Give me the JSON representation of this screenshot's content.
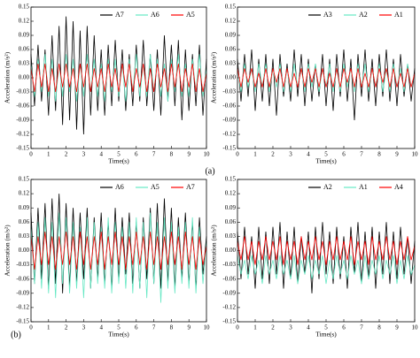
{
  "chart_data": [
    {
      "type": "line",
      "x_label": "Time(s)",
      "y_label": "Acceleration (m/s²)",
      "xlim": [
        0,
        10
      ],
      "ylim": [
        -0.15,
        0.15
      ],
      "xticks": [
        0,
        1,
        2,
        3,
        4,
        5,
        6,
        7,
        8,
        9,
        10
      ],
      "yticks": [
        0.15,
        0.12,
        0.09,
        0.06,
        0.03,
        {
          "value": 0,
          "label": "0.00"
        },
        -0.03,
        -0.06,
        -0.09,
        -0.12,
        -0.15
      ],
      "legend": "upper right",
      "x": [
        0,
        0.2,
        0.4,
        0.6,
        0.8,
        1,
        1.2,
        1.4,
        1.6,
        1.8,
        2,
        2.2,
        2.4,
        2.6,
        2.8,
        3,
        3.2,
        3.4,
        3.6,
        3.8,
        4,
        4.2,
        4.4,
        4.6,
        4.8,
        5,
        5.2,
        5.4,
        5.6,
        5.8,
        6,
        6.2,
        6.4,
        6.6,
        6.8,
        7,
        7.2,
        7.4,
        7.6,
        7.8,
        8,
        8.2,
        8.4,
        8.6,
        8.8,
        9,
        9.2,
        9.4,
        9.6,
        9.8,
        10
      ],
      "series": [
        {
          "name": "A7",
          "color": "#000000",
          "values": [
            0.05,
            -0.06,
            0.07,
            -0.05,
            0.06,
            -0.08,
            0.09,
            -0.07,
            0.11,
            -0.1,
            0.13,
            -0.09,
            0.12,
            -0.11,
            0.1,
            -0.12,
            0.11,
            -0.08,
            0.09,
            -0.07,
            0.06,
            -0.08,
            0.07,
            -0.06,
            0.08,
            -0.05,
            0.06,
            -0.07,
            0.05,
            -0.06,
            0.07,
            -0.05,
            0.08,
            -0.06,
            0.05,
            -0.07,
            0.06,
            -0.08,
            0.09,
            -0.05,
            0.07,
            -0.06,
            0.08,
            -0.09,
            0.06,
            -0.07,
            0.05,
            -0.06,
            0.07,
            -0.08,
            0.04
          ]
        },
        {
          "name": "A6",
          "color": "#66e8c4",
          "values": [
            0.03,
            -0.04,
            0.04,
            -0.03,
            0.05,
            -0.04,
            0.04,
            -0.05,
            0.03,
            -0.04,
            0.05,
            -0.03,
            0.04,
            -0.05,
            0.03,
            -0.04,
            0.05,
            -0.03,
            0.04,
            -0.04,
            0.03,
            -0.05,
            0.04,
            -0.03,
            0.04,
            -0.04,
            0.03,
            -0.05,
            0.04,
            -0.03,
            0.05,
            -0.04,
            0.03,
            -0.04,
            0.05,
            -0.03,
            0.04,
            -0.04,
            0.03,
            -0.05,
            0.04,
            -0.03,
            0.05,
            -0.04,
            0.03,
            -0.04,
            0.04,
            -0.03,
            0.05,
            -0.04,
            0.02
          ]
        },
        {
          "name": "A5",
          "color": "#ff0000",
          "values": [
            0.02,
            -0.03,
            0.03,
            -0.02,
            0.03,
            -0.03,
            0.02,
            -0.03,
            0.03,
            -0.02,
            0.03,
            -0.02,
            0.02,
            -0.03,
            0.03,
            -0.02,
            0.03,
            -0.03,
            0.02,
            -0.02,
            0.02,
            -0.03,
            0.03,
            -0.02,
            0.02,
            -0.03,
            0.03,
            -0.02,
            0.03,
            -0.03,
            0.02,
            -0.02,
            0.03,
            -0.03,
            0.02,
            -0.03,
            0.03,
            -0.02,
            0.02,
            -0.03,
            0.03,
            -0.02,
            0.03,
            -0.03,
            0.02,
            -0.02,
            0.03,
            -0.03,
            0.02,
            -0.03,
            0.01
          ]
        }
      ]
    },
    {
      "type": "line",
      "x_label": "Time(s)",
      "y_label": "Acceleration (m/s²)",
      "xlim": [
        0,
        10
      ],
      "ylim": [
        -0.15,
        0.15
      ],
      "xticks": [
        0,
        1,
        2,
        3,
        4,
        5,
        6,
        7,
        8,
        9,
        10
      ],
      "yticks": [
        0.15,
        0.12,
        0.09,
        0.06,
        0.03,
        {
          "value": 0,
          "label": "0.00"
        },
        -0.03,
        -0.06,
        -0.09,
        -0.12,
        -0.15
      ],
      "legend": "upper right",
      "x": [
        0,
        0.2,
        0.4,
        0.6,
        0.8,
        1,
        1.2,
        1.4,
        1.6,
        1.8,
        2,
        2.2,
        2.4,
        2.6,
        2.8,
        3,
        3.2,
        3.4,
        3.6,
        3.8,
        4,
        4.2,
        4.4,
        4.6,
        4.8,
        5,
        5.2,
        5.4,
        5.6,
        5.8,
        6,
        6.2,
        6.4,
        6.6,
        6.8,
        7,
        7.2,
        7.4,
        7.6,
        7.8,
        8,
        8.2,
        8.4,
        8.6,
        8.8,
        9,
        9.2,
        9.4,
        9.6,
        9.8,
        10
      ],
      "series": [
        {
          "name": "A3",
          "color": "#000000",
          "values": [
            0.04,
            -0.05,
            0.05,
            -0.04,
            0.06,
            -0.07,
            0.04,
            -0.05,
            0.05,
            -0.06,
            0.04,
            -0.08,
            0.05,
            -0.04,
            0.03,
            -0.05,
            0.06,
            -0.04,
            0.05,
            -0.06,
            0.04,
            -0.05,
            0.03,
            -0.04,
            0.05,
            -0.06,
            0.04,
            -0.07,
            0.05,
            -0.04,
            0.06,
            -0.05,
            0.04,
            -0.09,
            0.05,
            -0.04,
            0.06,
            -0.05,
            0.04,
            -0.06,
            0.05,
            -0.04,
            0.06,
            -0.05,
            0.04,
            -0.06,
            0.05,
            -0.04,
            0.03,
            -0.05,
            0.02
          ]
        },
        {
          "name": "A2",
          "color": "#66e8c4",
          "values": [
            0.02,
            -0.03,
            0.03,
            -0.02,
            0.02,
            -0.03,
            0.03,
            -0.02,
            0.03,
            -0.03,
            0.02,
            -0.02,
            0.03,
            -0.03,
            0.02,
            -0.03,
            0.03,
            -0.02,
            0.02,
            -0.03,
            0.03,
            -0.02,
            0.03,
            -0.03,
            0.02,
            -0.02,
            0.03,
            -0.03,
            0.02,
            -0.03,
            0.03,
            -0.02,
            0.02,
            -0.03,
            0.03,
            -0.02,
            0.03,
            -0.03,
            0.02,
            -0.02,
            0.03,
            -0.03,
            0.02,
            -0.03,
            0.03,
            -0.02,
            0.02,
            -0.03,
            0.03,
            -0.02,
            0.01
          ]
        },
        {
          "name": "A1",
          "color": "#ff0000",
          "values": [
            0.02,
            -0.02,
            0.02,
            -0.01,
            0.02,
            -0.02,
            0.01,
            -0.02,
            0.02,
            -0.02,
            0.02,
            -0.01,
            0.02,
            -0.02,
            0.02,
            -0.02,
            0.01,
            -0.02,
            0.02,
            -0.02,
            0.02,
            -0.01,
            0.02,
            -0.02,
            0.02,
            -0.02,
            0.01,
            -0.02,
            0.02,
            -0.02,
            0.02,
            -0.01,
            0.02,
            -0.02,
            0.02,
            -0.02,
            0.01,
            -0.02,
            0.02,
            -0.02,
            0.02,
            -0.01,
            0.02,
            -0.02,
            0.02,
            -0.02,
            0.01,
            -0.02,
            0.02,
            -0.02,
            0.01
          ]
        }
      ]
    },
    {
      "type": "line",
      "x_label": "Time(s)",
      "y_label": "Acceleration (m/s²)",
      "xlim": [
        0,
        10
      ],
      "ylim": [
        -0.15,
        0.15
      ],
      "xticks": [
        0,
        1,
        2,
        3,
        4,
        5,
        6,
        7,
        8,
        9,
        10
      ],
      "yticks": [
        0.15,
        0.12,
        0.09,
        0.06,
        0.03,
        {
          "value": 0,
          "label": "0.00"
        },
        -0.03,
        -0.06,
        -0.09,
        -0.12,
        -0.15
      ],
      "legend": "upper right",
      "x": [
        0,
        0.2,
        0.4,
        0.6,
        0.8,
        1,
        1.2,
        1.4,
        1.6,
        1.8,
        2,
        2.2,
        2.4,
        2.6,
        2.8,
        3,
        3.2,
        3.4,
        3.6,
        3.8,
        4,
        4.2,
        4.4,
        4.6,
        4.8,
        5,
        5.2,
        5.4,
        5.6,
        5.8,
        6,
        6.2,
        6.4,
        6.6,
        6.8,
        7,
        7.2,
        7.4,
        7.6,
        7.8,
        8,
        8.2,
        8.4,
        8.6,
        8.8,
        9,
        9.2,
        9.4,
        9.6,
        9.8,
        10
      ],
      "series": [
        {
          "name": "A6",
          "color": "#000000",
          "values": [
            0.08,
            -0.07,
            0.09,
            -0.06,
            0.1,
            -0.08,
            0.11,
            -0.07,
            0.12,
            -0.09,
            0.1,
            -0.08,
            0.09,
            -0.07,
            0.08,
            -0.06,
            0.09,
            -0.08,
            0.07,
            -0.06,
            0.08,
            -0.07,
            0.06,
            -0.08,
            0.09,
            -0.06,
            0.07,
            -0.05,
            0.08,
            -0.07,
            0.06,
            -0.08,
            0.07,
            -0.06,
            0.09,
            -0.07,
            0.1,
            -0.08,
            0.11,
            -0.07,
            0.09,
            -0.08,
            0.07,
            -0.06,
            0.08,
            -0.07,
            0.06,
            -0.08,
            0.07,
            -0.05,
            0.03
          ]
        },
        {
          "name": "A5",
          "color": "#66e8c4",
          "values": [
            0.05,
            -0.07,
            0.06,
            -0.08,
            0.07,
            -0.09,
            0.06,
            -0.1,
            0.08,
            -0.07,
            0.07,
            -0.09,
            0.06,
            -0.08,
            0.05,
            -0.1,
            0.07,
            -0.08,
            0.06,
            -0.07,
            0.05,
            -0.08,
            0.07,
            -0.09,
            0.06,
            -0.07,
            0.05,
            -0.08,
            0.06,
            -0.09,
            0.07,
            -0.08,
            0.06,
            -0.1,
            0.08,
            -0.07,
            0.06,
            -0.11,
            0.07,
            -0.08,
            0.06,
            -0.09,
            0.05,
            -0.07,
            0.06,
            -0.08,
            0.07,
            -0.09,
            0.05,
            -0.07,
            0.02
          ]
        },
        {
          "name": "A7",
          "color": "#ff0000",
          "values": [
            0.03,
            -0.04,
            0.03,
            -0.03,
            0.04,
            -0.03,
            0.03,
            -0.04,
            0.03,
            -0.03,
            0.04,
            -0.03,
            0.03,
            -0.04,
            0.04,
            -0.03,
            0.03,
            -0.04,
            0.03,
            -0.03,
            0.04,
            -0.04,
            0.03,
            -0.03,
            0.04,
            -0.03,
            0.03,
            -0.04,
            0.03,
            -0.03,
            0.04,
            -0.03,
            0.03,
            -0.04,
            0.04,
            -0.03,
            0.03,
            -0.04,
            0.03,
            -0.03,
            0.04,
            -0.03,
            0.03,
            -0.04,
            0.04,
            -0.03,
            0.03,
            -0.04,
            0.03,
            -0.03,
            0.01
          ]
        }
      ]
    },
    {
      "type": "line",
      "x_label": "Time(s)",
      "y_label": "Acceleration (m/s²)",
      "xlim": [
        0,
        10
      ],
      "ylim": [
        -0.15,
        0.15
      ],
      "xticks": [
        0,
        1,
        2,
        3,
        4,
        5,
        6,
        7,
        8,
        9,
        10
      ],
      "yticks": [
        0.15,
        0.12,
        0.09,
        0.06,
        0.03,
        {
          "value": 0,
          "label": "0.00"
        },
        -0.03,
        -0.06,
        -0.09,
        -0.12,
        -0.15
      ],
      "legend": "upper right",
      "x": [
        0,
        0.2,
        0.4,
        0.6,
        0.8,
        1,
        1.2,
        1.4,
        1.6,
        1.8,
        2,
        2.2,
        2.4,
        2.6,
        2.8,
        3,
        3.2,
        3.4,
        3.6,
        3.8,
        4,
        4.2,
        4.4,
        4.6,
        4.8,
        5,
        5.2,
        5.4,
        5.6,
        5.8,
        6,
        6.2,
        6.4,
        6.6,
        6.8,
        7,
        7.2,
        7.4,
        7.6,
        7.8,
        8,
        8.2,
        8.4,
        8.6,
        8.8,
        9,
        9.2,
        9.4,
        9.6,
        9.8,
        10
      ],
      "series": [
        {
          "name": "A2",
          "color": "#000000",
          "values": [
            0.04,
            -0.06,
            0.05,
            -0.05,
            0.03,
            -0.08,
            0.05,
            -0.06,
            0.04,
            -0.07,
            0.05,
            -0.05,
            0.06,
            -0.08,
            0.04,
            -0.06,
            0.05,
            -0.07,
            0.03,
            -0.05,
            0.04,
            -0.09,
            0.05,
            -0.06,
            0.06,
            -0.05,
            0.04,
            -0.07,
            0.05,
            -0.06,
            0.03,
            -0.08,
            0.05,
            -0.05,
            0.06,
            -0.07,
            0.04,
            -0.06,
            0.05,
            -0.08,
            0.04,
            -0.05,
            0.06,
            -0.07,
            0.04,
            -0.06,
            0.05,
            -0.05,
            0.03,
            -0.07,
            0.02
          ]
        },
        {
          "name": "A1",
          "color": "#66e8c4",
          "values": [
            -0.01,
            -0.05,
            -0.02,
            -0.06,
            -0.01,
            -0.05,
            -0.02,
            -0.07,
            -0.01,
            -0.05,
            -0.02,
            -0.06,
            -0.01,
            -0.05,
            -0.02,
            -0.06,
            -0.01,
            -0.07,
            -0.02,
            -0.05,
            -0.01,
            -0.06,
            -0.02,
            -0.05,
            -0.01,
            -0.07,
            -0.02,
            -0.06,
            -0.01,
            -0.05,
            -0.02,
            -0.06,
            -0.01,
            -0.05,
            -0.02,
            -0.07,
            -0.01,
            -0.06,
            -0.02,
            -0.05,
            -0.01,
            -0.06,
            -0.02,
            -0.05,
            -0.01,
            -0.07,
            -0.02,
            -0.06,
            -0.01,
            -0.05,
            -0.03
          ]
        },
        {
          "name": "A4",
          "color": "#ff0000",
          "values": [
            0.02,
            -0.02,
            0.03,
            -0.02,
            0.02,
            -0.03,
            0.02,
            -0.02,
            0.03,
            -0.02,
            0.02,
            -0.02,
            0.03,
            -0.03,
            0.02,
            -0.02,
            0.02,
            -0.03,
            0.03,
            -0.02,
            0.02,
            -0.02,
            0.03,
            -0.02,
            0.02,
            -0.03,
            0.02,
            -0.02,
            0.03,
            -0.02,
            0.02,
            -0.02,
            0.03,
            -0.03,
            0.02,
            -0.02,
            0.02,
            -0.03,
            0.03,
            -0.02,
            0.02,
            -0.02,
            0.03,
            -0.02,
            0.02,
            -0.03,
            0.02,
            -0.02,
            0.03,
            -0.02,
            0.01
          ]
        }
      ]
    }
  ],
  "panel_labels": [
    "(a)",
    "(b)"
  ]
}
